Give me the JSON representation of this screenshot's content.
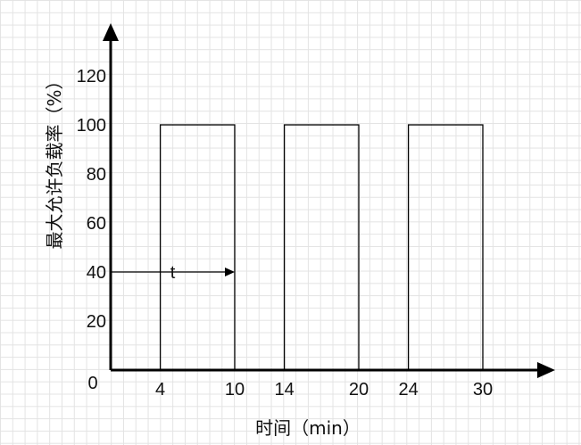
{
  "chart_data": {
    "type": "bar",
    "xlabel": "时间（min）",
    "ylabel": "最大允许负载率（%）",
    "x_ticks": [
      4,
      10,
      14,
      20,
      24,
      30
    ],
    "y_ticks": [
      0,
      20,
      40,
      60,
      80,
      100,
      120
    ],
    "xlim": [
      0,
      36
    ],
    "ylim": [
      0,
      135
    ],
    "grid": true,
    "bars": [
      {
        "x_start": 4,
        "x_end": 10,
        "value": 100
      },
      {
        "x_start": 14,
        "x_end": 20,
        "value": 100
      },
      {
        "x_start": 24,
        "x_end": 30,
        "value": 100
      }
    ],
    "annotation": {
      "label": "t",
      "x_start": 0,
      "x_end": 10,
      "y": 40
    }
  },
  "colors": {
    "axis": "#000000",
    "bar_stroke": "#000000",
    "grid": "#e3e3e3",
    "text": "#111111"
  }
}
